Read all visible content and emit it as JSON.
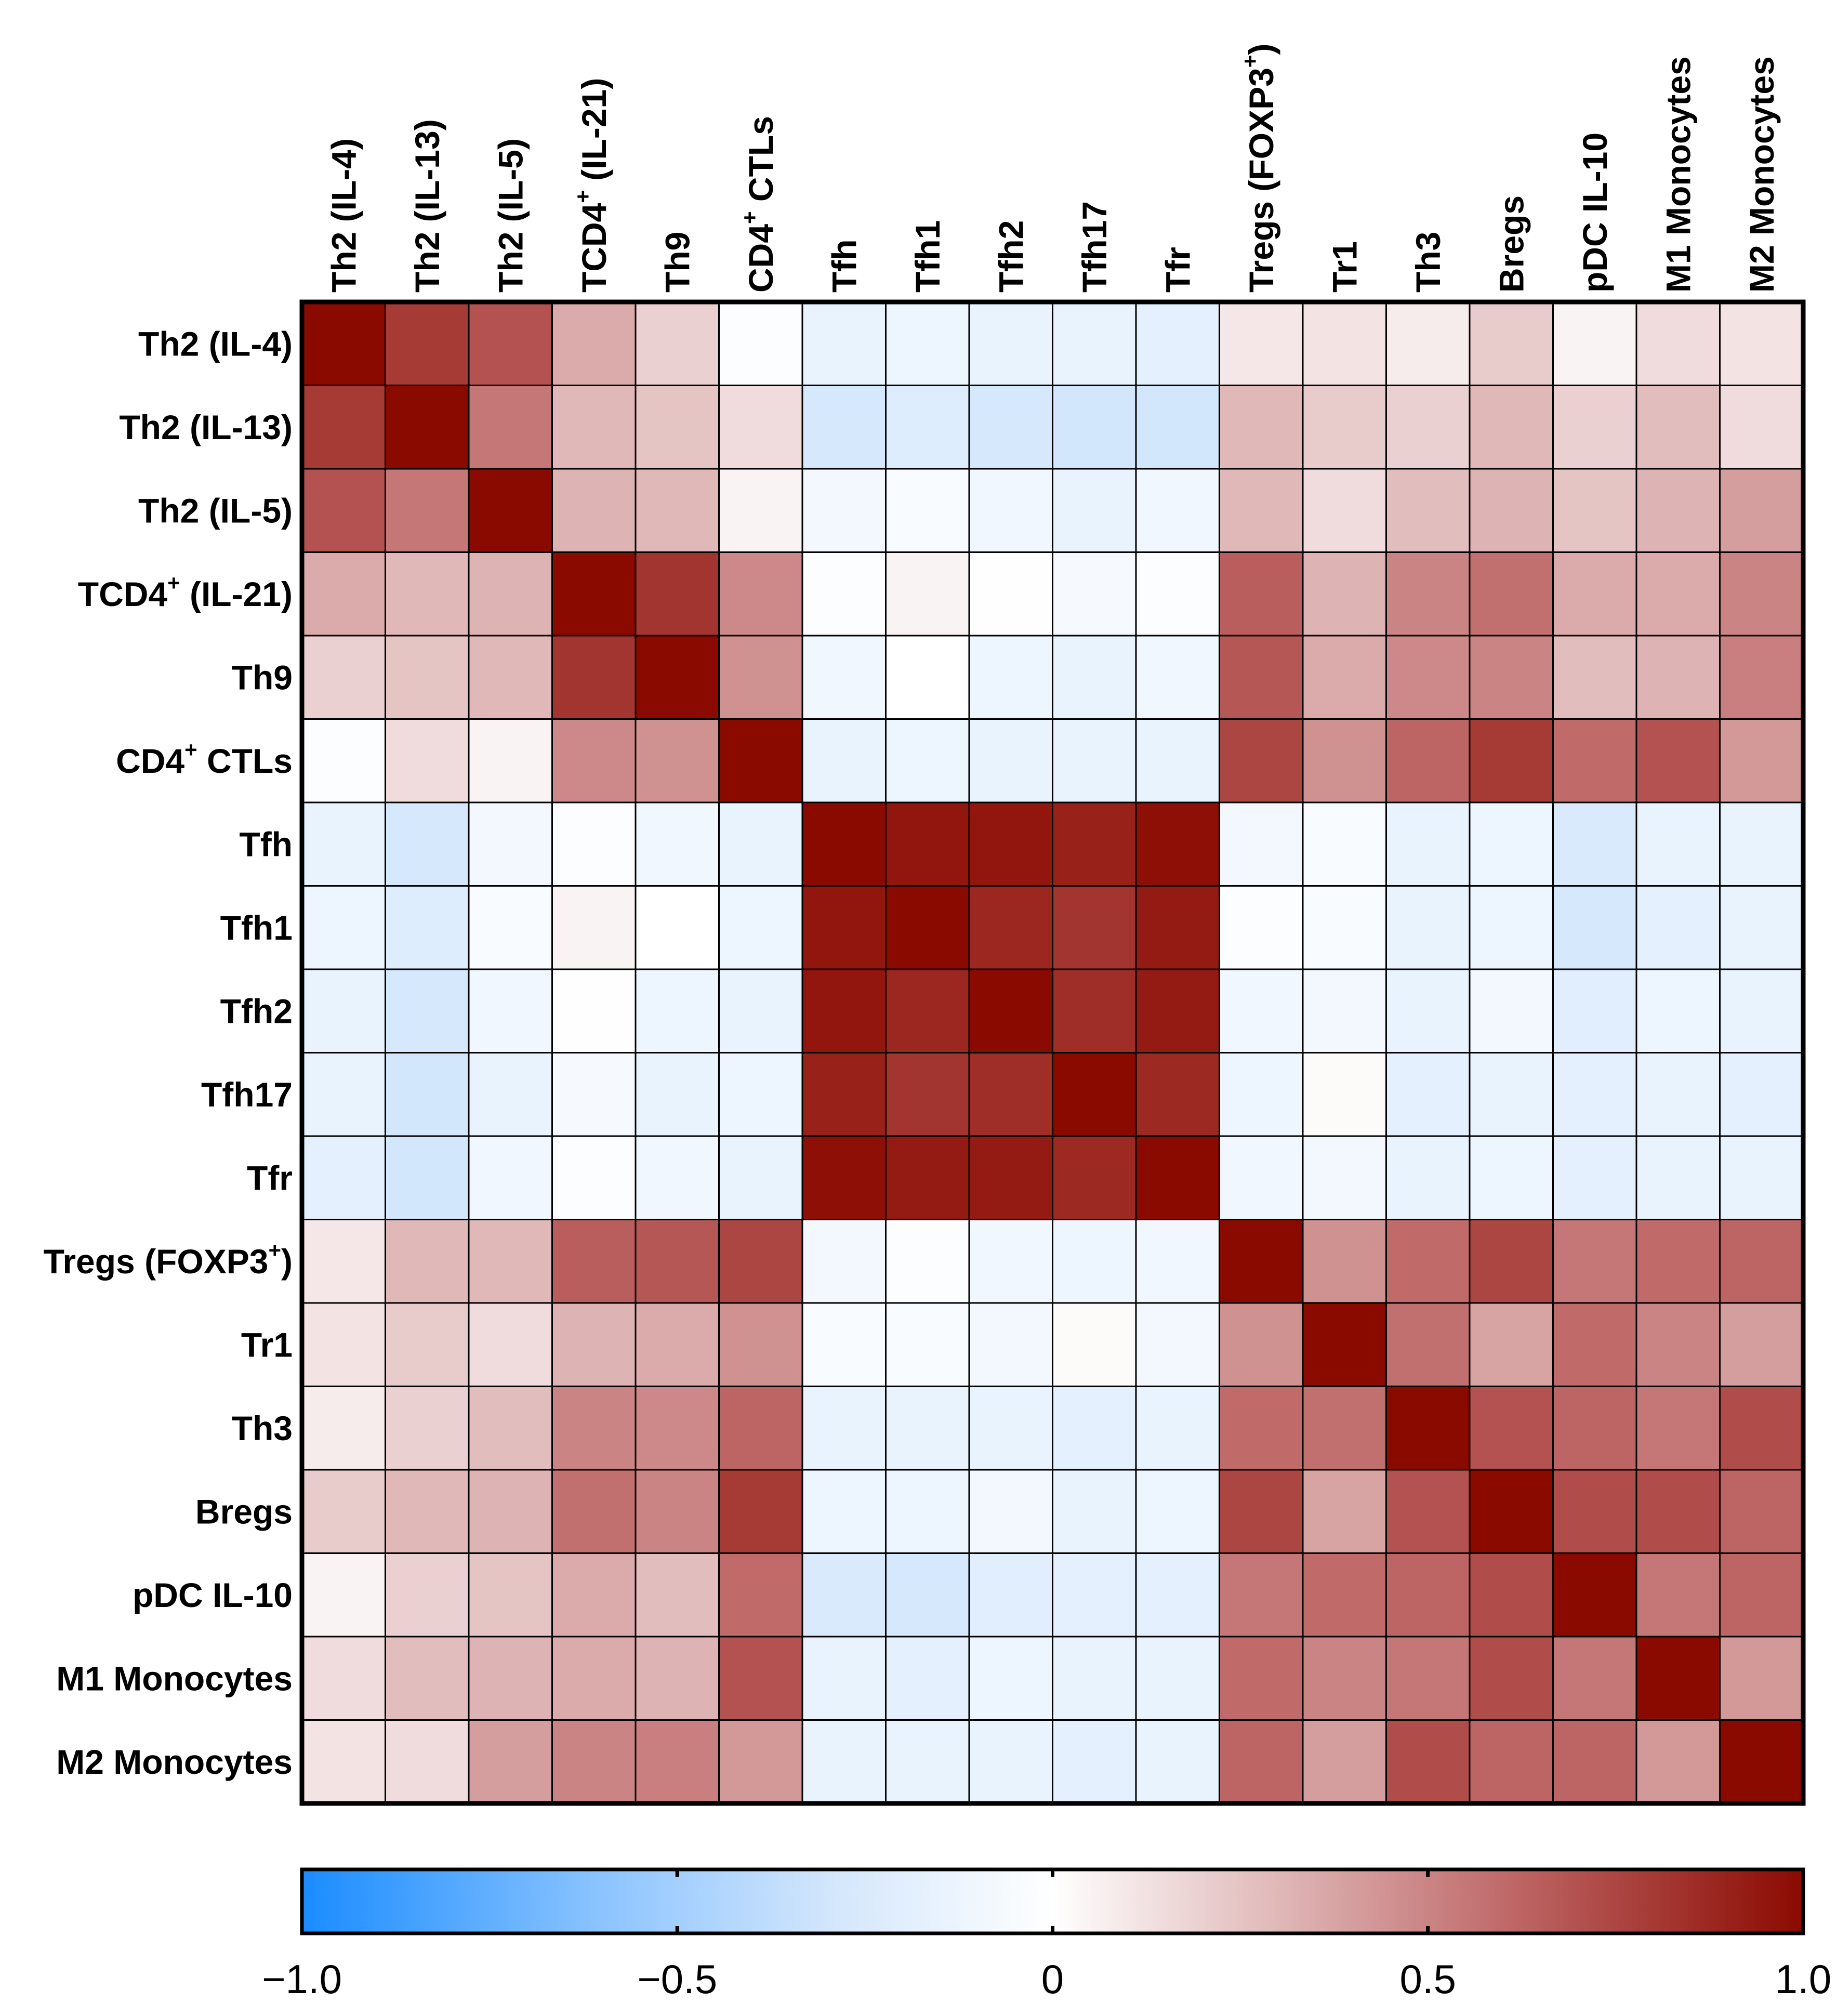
{
  "chart_data": {
    "type": "heatmap",
    "title": "",
    "row_labels": [
      {
        "base": "Th2 (IL-4)"
      },
      {
        "base": "Th2 (IL-13)"
      },
      {
        "base": "Th2 (IL-5)"
      },
      {
        "base": "TCD4",
        "sup": "+",
        "rest": " (IL-21)"
      },
      {
        "base": "Th9"
      },
      {
        "base": "CD4",
        "sup": "+",
        "rest": " CTLs"
      },
      {
        "base": "Tfh"
      },
      {
        "base": "Tfh1"
      },
      {
        "base": "Tfh2"
      },
      {
        "base": "Tfh17"
      },
      {
        "base": "Tfr"
      },
      {
        "base": "Tregs (FOXP3",
        "sup": "+",
        "rest": ")"
      },
      {
        "base": "Tr1"
      },
      {
        "base": "Th3"
      },
      {
        "base": "Bregs"
      },
      {
        "base": "pDC IL-10"
      },
      {
        "base": "M1 Monocytes"
      },
      {
        "base": "M2 Monocytes"
      }
    ],
    "column_labels_same_as_rows": true,
    "values": [
      [
        1.0,
        0.8,
        0.7,
        0.35,
        0.2,
        -0.02,
        -0.15,
        -0.12,
        -0.15,
        -0.15,
        -0.18,
        0.1,
        0.12,
        0.08,
        0.22,
        0.05,
        0.15,
        0.12
      ],
      [
        0.8,
        1.0,
        0.55,
        0.3,
        0.25,
        0.15,
        -0.28,
        -0.22,
        -0.28,
        -0.3,
        -0.3,
        0.3,
        0.22,
        0.2,
        0.3,
        0.2,
        0.28,
        0.15
      ],
      [
        0.7,
        0.55,
        1.0,
        0.32,
        0.3,
        0.05,
        -0.08,
        -0.05,
        -0.1,
        -0.15,
        -0.1,
        0.3,
        0.15,
        0.28,
        0.32,
        0.25,
        0.32,
        0.4
      ],
      [
        0.35,
        0.3,
        0.32,
        1.0,
        0.82,
        0.48,
        -0.02,
        0.05,
        -0.01,
        -0.06,
        -0.03,
        0.65,
        0.32,
        0.5,
        0.58,
        0.35,
        0.35,
        0.5
      ],
      [
        0.2,
        0.25,
        0.3,
        0.82,
        1.0,
        0.45,
        -0.1,
        0.0,
        -0.12,
        -0.15,
        -0.1,
        0.68,
        0.35,
        0.48,
        0.5,
        0.28,
        0.32,
        0.52
      ],
      [
        -0.02,
        0.15,
        0.05,
        0.48,
        0.45,
        1.0,
        -0.15,
        -0.12,
        -0.15,
        -0.15,
        -0.15,
        0.75,
        0.45,
        0.62,
        0.8,
        0.6,
        0.7,
        0.42
      ],
      [
        -0.15,
        -0.28,
        -0.08,
        -0.02,
        -0.1,
        -0.15,
        1.0,
        0.95,
        0.95,
        0.9,
        0.98,
        -0.08,
        -0.05,
        -0.15,
        -0.12,
        -0.25,
        -0.15,
        -0.15
      ],
      [
        -0.12,
        -0.22,
        -0.05,
        0.05,
        0.0,
        -0.12,
        0.95,
        1.0,
        0.88,
        0.82,
        0.93,
        -0.03,
        -0.05,
        -0.15,
        -0.12,
        -0.28,
        -0.18,
        -0.15
      ],
      [
        -0.15,
        -0.28,
        -0.1,
        -0.01,
        -0.12,
        -0.15,
        0.95,
        0.88,
        1.0,
        0.85,
        0.93,
        -0.1,
        -0.08,
        -0.15,
        -0.08,
        -0.2,
        -0.12,
        -0.15
      ],
      [
        -0.15,
        -0.3,
        -0.15,
        -0.06,
        -0.15,
        -0.12,
        0.9,
        0.82,
        0.85,
        1.0,
        0.87,
        -0.12,
        0.02,
        -0.18,
        -0.15,
        -0.18,
        -0.15,
        -0.18
      ],
      [
        -0.18,
        -0.3,
        -0.1,
        -0.03,
        -0.1,
        -0.15,
        0.98,
        0.93,
        0.93,
        0.87,
        1.0,
        -0.1,
        -0.08,
        -0.15,
        -0.12,
        -0.18,
        -0.15,
        -0.15
      ],
      [
        0.1,
        0.3,
        0.3,
        0.65,
        0.68,
        0.75,
        -0.08,
        -0.03,
        -0.1,
        -0.12,
        -0.1,
        1.0,
        0.45,
        0.6,
        0.75,
        0.55,
        0.6,
        0.62
      ],
      [
        0.12,
        0.22,
        0.15,
        0.32,
        0.35,
        0.45,
        -0.05,
        -0.05,
        -0.08,
        0.02,
        -0.08,
        0.45,
        1.0,
        0.58,
        0.38,
        0.6,
        0.5,
        0.4
      ],
      [
        0.08,
        0.2,
        0.28,
        0.5,
        0.48,
        0.62,
        -0.15,
        -0.15,
        -0.15,
        -0.18,
        -0.15,
        0.6,
        0.58,
        1.0,
        0.7,
        0.62,
        0.55,
        0.72
      ],
      [
        0.22,
        0.3,
        0.32,
        0.58,
        0.5,
        0.8,
        -0.12,
        -0.12,
        -0.08,
        -0.15,
        -0.12,
        0.75,
        0.38,
        0.7,
        1.0,
        0.72,
        0.72,
        0.62
      ],
      [
        0.05,
        0.2,
        0.25,
        0.35,
        0.28,
        0.6,
        -0.25,
        -0.28,
        -0.2,
        -0.18,
        -0.18,
        0.55,
        0.6,
        0.62,
        0.72,
        1.0,
        0.55,
        0.62
      ],
      [
        0.15,
        0.28,
        0.32,
        0.35,
        0.32,
        0.7,
        -0.15,
        -0.18,
        -0.12,
        -0.15,
        -0.15,
        0.6,
        0.5,
        0.55,
        0.72,
        0.55,
        1.0,
        0.42
      ],
      [
        0.12,
        0.15,
        0.4,
        0.5,
        0.52,
        0.42,
        -0.15,
        -0.15,
        -0.15,
        -0.18,
        -0.15,
        0.62,
        0.4,
        0.72,
        0.62,
        0.62,
        0.42,
        1.0
      ]
    ],
    "colorbar": {
      "range": [
        -1.0,
        1.0
      ],
      "ticks": [
        -1.0,
        -0.5,
        0,
        0.5,
        1.0
      ],
      "tick_labels": [
        "−1.0",
        "−0.5",
        "0",
        "0.5",
        "1.0"
      ],
      "stops": [
        {
          "value": -1.0,
          "color": "#1a8cff"
        },
        {
          "value": -0.6,
          "color": "#8cc4ff"
        },
        {
          "value": -0.3,
          "color": "#d2e6fc"
        },
        {
          "value": 0.0,
          "color": "#ffffff"
        },
        {
          "value": 0.3,
          "color": "#e0b8b8"
        },
        {
          "value": 0.6,
          "color": "#c06a6a"
        },
        {
          "value": 1.0,
          "color": "#8b0a00"
        }
      ]
    }
  }
}
